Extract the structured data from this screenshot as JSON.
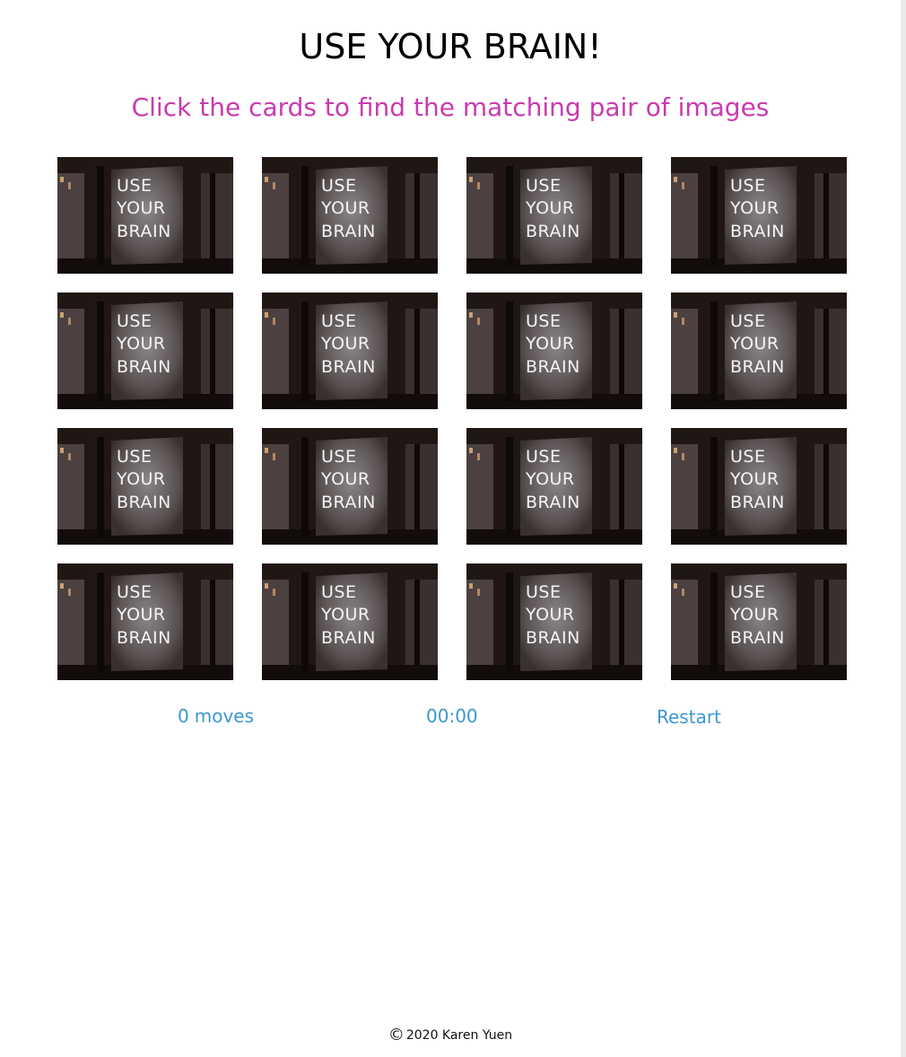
{
  "header": {
    "title": "USE YOUR BRAIN!",
    "subtitle": "Click the cards to find the matching pair of images"
  },
  "board": {
    "card_face_text": [
      "USE",
      "YOUR",
      "BRAIN"
    ],
    "card_count": 16,
    "columns": 4
  },
  "stats": {
    "moves_count": "0",
    "moves_label": "moves",
    "timer": "00:00",
    "restart_label": "Restart"
  },
  "footer": {
    "copyright_symbol": "©",
    "text": "2020 Karen Yuen"
  },
  "colors": {
    "subtitle": "#c93ab0",
    "stats": "#3a98cf",
    "title": "#000000"
  }
}
